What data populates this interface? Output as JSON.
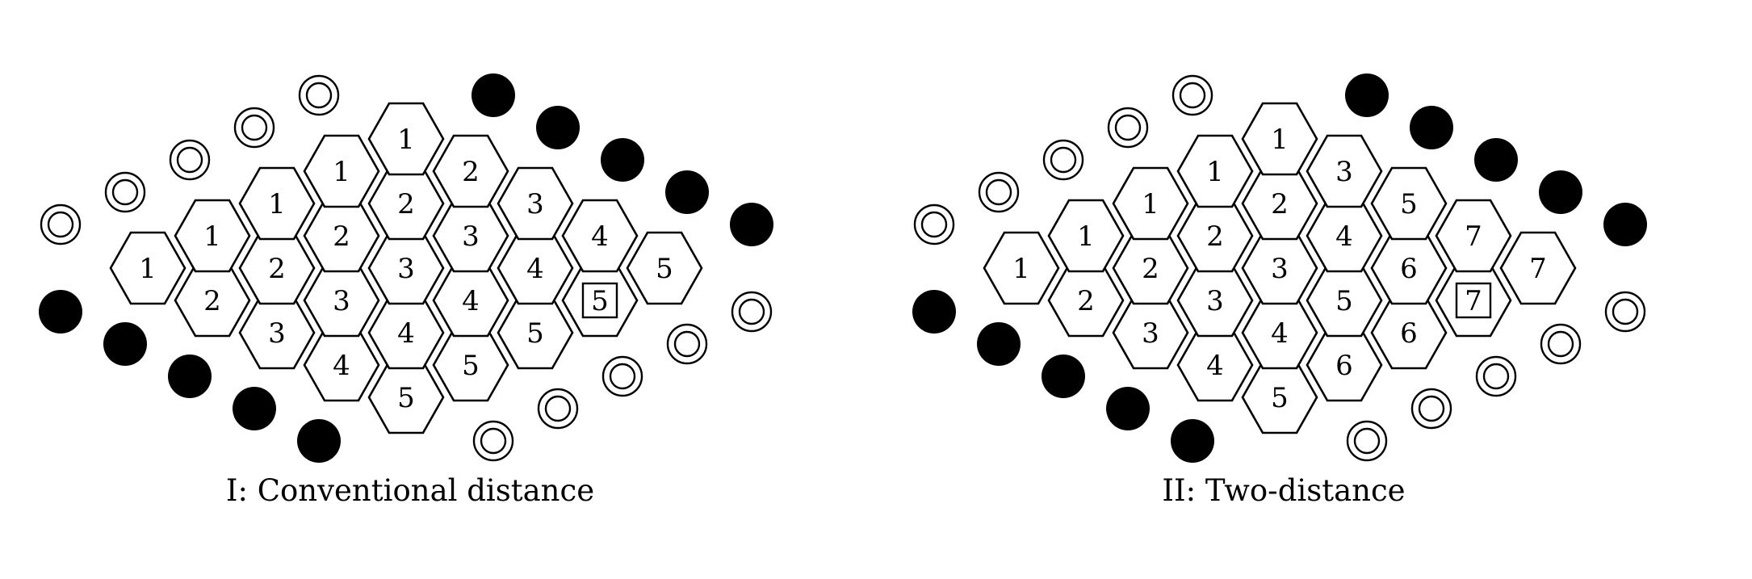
{
  "board_size": 5,
  "board_cell_fill": "#ffffff",
  "board_stroke": "#000000",
  "white_marker": "double-ring",
  "black_marker": "filled-disc",
  "highlighted_cell_marker": "square-box",
  "panels": [
    {
      "caption": "I: Conventional distance",
      "rows": [
        [
          "1",
          "1",
          "1",
          "1",
          "1"
        ],
        [
          "2",
          "2",
          "2",
          "2",
          "2"
        ],
        [
          "3",
          "3",
          "3",
          "3",
          "3"
        ],
        [
          "4",
          "4",
          "4",
          "4",
          "4"
        ],
        [
          "5",
          "5",
          "5",
          "5",
          "5"
        ]
      ],
      "highlight": [
        3,
        4
      ]
    },
    {
      "caption": "II: Two-distance",
      "rows": [
        [
          "1",
          "1",
          "1",
          "1",
          "1"
        ],
        [
          "2",
          "2",
          "2",
          "2",
          "3"
        ],
        [
          "3",
          "3",
          "3",
          "4",
          "5"
        ],
        [
          "4",
          "4",
          "5",
          "6",
          "7"
        ],
        [
          "5",
          "6",
          "6",
          "7",
          "7"
        ]
      ],
      "highlight": [
        3,
        4
      ]
    }
  ]
}
